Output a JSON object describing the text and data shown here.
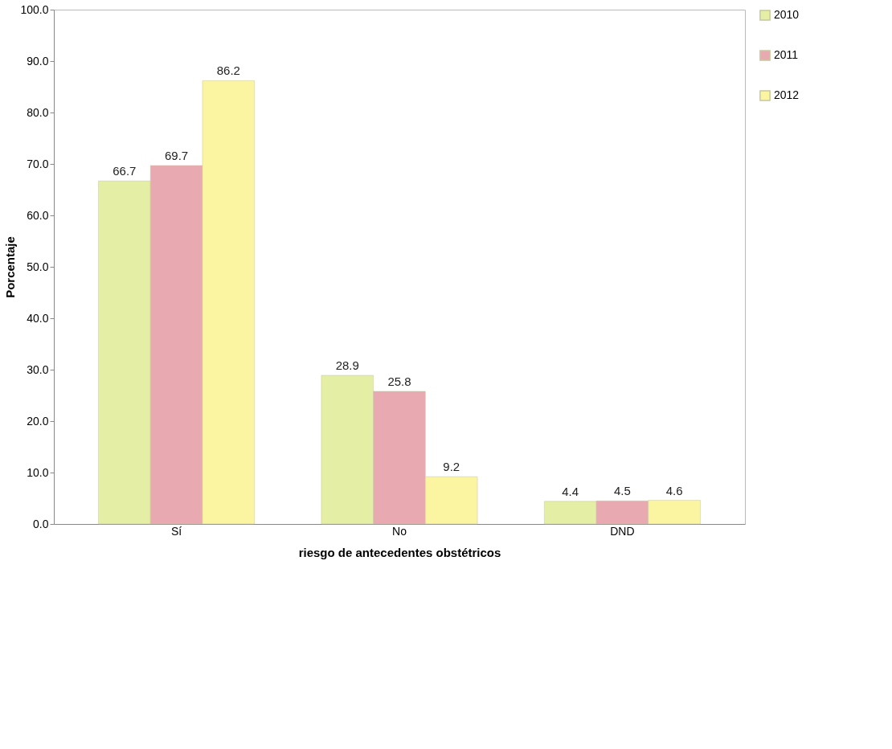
{
  "chart_data": {
    "type": "bar",
    "xlabel": "riesgo de antecedentes obstétricos",
    "ylabel": "Porcentaje",
    "categories": [
      "Sí",
      "No",
      "DND"
    ],
    "series": [
      {
        "name": "2010",
        "color": "#e4eea4",
        "values": [
          66.7,
          28.9,
          4.4
        ]
      },
      {
        "name": "2011",
        "color": "#e9a9b1",
        "values": [
          69.7,
          25.8,
          4.5
        ]
      },
      {
        "name": "2012",
        "color": "#fbf4a0",
        "values": [
          86.2,
          9.2,
          4.6
        ]
      }
    ],
    "ylim": [
      0,
      100
    ],
    "yticks": [
      {
        "value": 0,
        "label": "0.0"
      },
      {
        "value": 10,
        "label": "10.0"
      },
      {
        "value": 20,
        "label": "20.0"
      },
      {
        "value": 30,
        "label": "30.0"
      },
      {
        "value": 40,
        "label": "40.0"
      },
      {
        "value": 50,
        "label": "50.0"
      },
      {
        "value": 60,
        "label": "60.0"
      },
      {
        "value": 70,
        "label": "70.0"
      },
      {
        "value": 80,
        "label": "80.0"
      },
      {
        "value": 90,
        "label": "90.0"
      },
      {
        "value": 100,
        "label": "100.0"
      }
    ],
    "data_labels": true,
    "legend": "right",
    "grid": false
  }
}
